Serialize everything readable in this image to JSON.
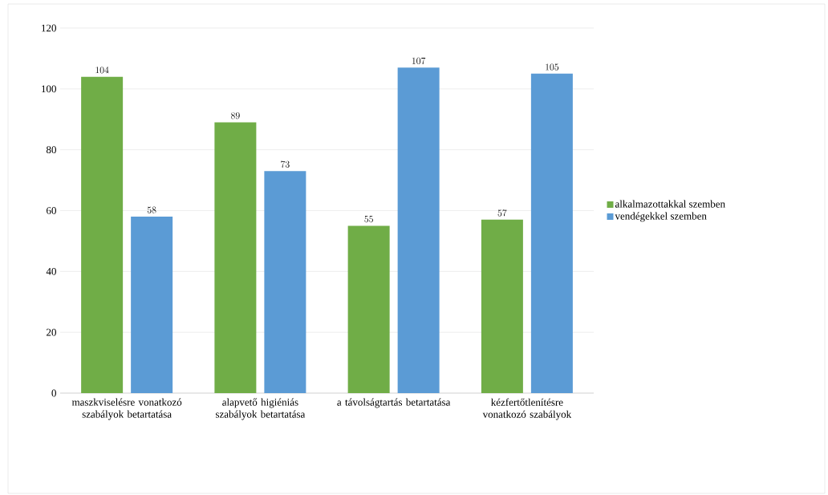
{
  "chart_data": {
    "type": "bar",
    "categories": [
      "maszkviselésre vonatkozó szabályok betartatása",
      "alapvető higiéniás szabályok betartatása",
      "a távolságtartás betartatása",
      "kézfertőtlenítésre vonatkozó szabályok"
    ],
    "series": [
      {
        "name": "alkalmazottakkal szemben",
        "color": "#70ad47",
        "values": [
          104,
          89,
          55,
          57
        ]
      },
      {
        "name": "vendégekkel szemben",
        "color": "#5b9bd5",
        "values": [
          58,
          73,
          107,
          105
        ]
      }
    ],
    "ylim": [
      0,
      120
    ],
    "yticks": [
      0,
      20,
      40,
      60,
      80,
      100,
      120
    ],
    "grid": "y",
    "legend": "right",
    "data_labels": true
  }
}
